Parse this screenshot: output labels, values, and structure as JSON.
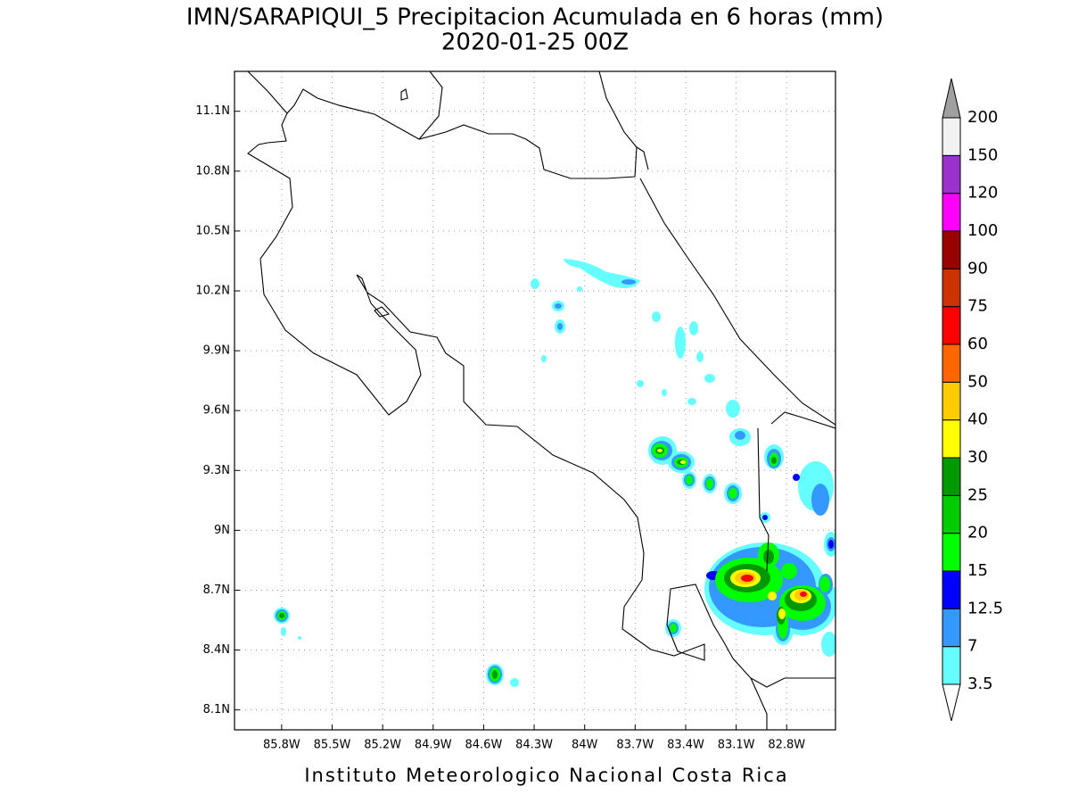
{
  "map": {
    "title": "IMN/SARAPIQUI_5 Precipitacion Acumulada en 6 horas (mm)",
    "subtitle": "2020-01-25 00Z",
    "footer": "Instituto Meteorologico Nacional Costa Rica",
    "xlim": [
      -86.08,
      -82.51
    ],
    "ylim": [
      8.0,
      11.3
    ],
    "xticks": [
      {
        "value": -85.8,
        "label": "85.8W"
      },
      {
        "value": -85.5,
        "label": "85.5W"
      },
      {
        "value": -85.2,
        "label": "85.2W"
      },
      {
        "value": -84.9,
        "label": "84.9W"
      },
      {
        "value": -84.6,
        "label": "84.6W"
      },
      {
        "value": -84.3,
        "label": "84.3W"
      },
      {
        "value": -84.0,
        "label": "84W"
      },
      {
        "value": -83.7,
        "label": "83.7W"
      },
      {
        "value": -83.4,
        "label": "83.4W"
      },
      {
        "value": -83.1,
        "label": "83.1W"
      },
      {
        "value": -82.8,
        "label": "82.8W"
      }
    ],
    "yticks": [
      {
        "value": 8.1,
        "label": "8.1N"
      },
      {
        "value": 8.4,
        "label": "8.4N"
      },
      {
        "value": 8.7,
        "label": "8.7N"
      },
      {
        "value": 9.0,
        "label": "9N"
      },
      {
        "value": 9.3,
        "label": "9.3N"
      },
      {
        "value": 9.6,
        "label": "9.6N"
      },
      {
        "value": 9.9,
        "label": "9.9N"
      },
      {
        "value": 10.2,
        "label": "10.2N"
      },
      {
        "value": 10.5,
        "label": "10.5N"
      },
      {
        "value": 10.8,
        "label": "10.8N"
      },
      {
        "value": 11.1,
        "label": "11.1N"
      }
    ],
    "grid": true,
    "colorbar": {
      "levels": [
        3.5,
        7,
        12.5,
        15,
        20,
        25,
        30,
        40,
        50,
        60,
        75,
        90,
        100,
        120,
        150,
        200
      ],
      "colors": [
        "#ffffff",
        "#66ffff",
        "#3399ff",
        "#0000ff",
        "#00ff00",
        "#00cc00",
        "#009900",
        "#ffff00",
        "#ffcc00",
        "#ff6600",
        "#ff0000",
        "#cc3300",
        "#990000",
        "#ff00ff",
        "#9933cc",
        "#f2f2f2",
        "#a0a0a0"
      ]
    }
  }
}
